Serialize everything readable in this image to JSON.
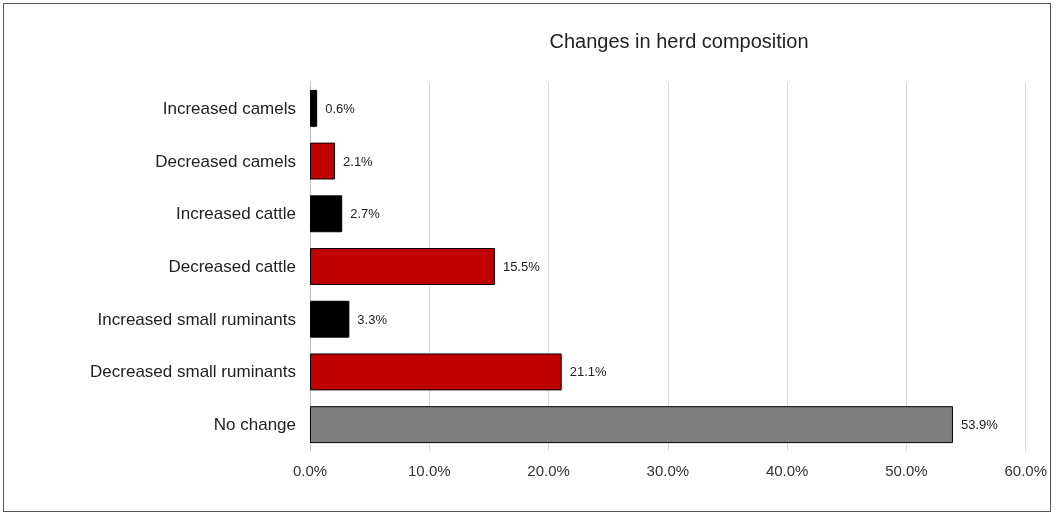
{
  "chart_data": {
    "type": "bar",
    "orientation": "horizontal",
    "title": "Changes in herd composition",
    "categories": [
      "Increased camels",
      "Decreased camels",
      "Increased cattle",
      "Decreased cattle",
      "Increased small ruminants",
      "Decreased small ruminants",
      "No change"
    ],
    "values": [
      0.6,
      2.1,
      2.7,
      15.5,
      3.3,
      21.1,
      53.9
    ],
    "colors": [
      "#000000",
      "#c00000",
      "#000000",
      "#c00000",
      "#000000",
      "#c00000",
      "#7f7f7f"
    ],
    "value_labels": [
      "0.6%",
      "2.1%",
      "2.7%",
      "15.5%",
      "3.3%",
      "21.1%",
      "53.9%"
    ],
    "xlim": [
      0,
      60
    ],
    "xticks": [
      {
        "value": 0,
        "label": "0.0%"
      },
      {
        "value": 10,
        "label": "10.0%"
      },
      {
        "value": 20,
        "label": "20.0%"
      },
      {
        "value": 30,
        "label": "30.0%"
      },
      {
        "value": 40,
        "label": "40.0%"
      },
      {
        "value": 50,
        "label": "50.0%"
      },
      {
        "value": 60,
        "label": "60.0%"
      }
    ],
    "grid": "x"
  }
}
